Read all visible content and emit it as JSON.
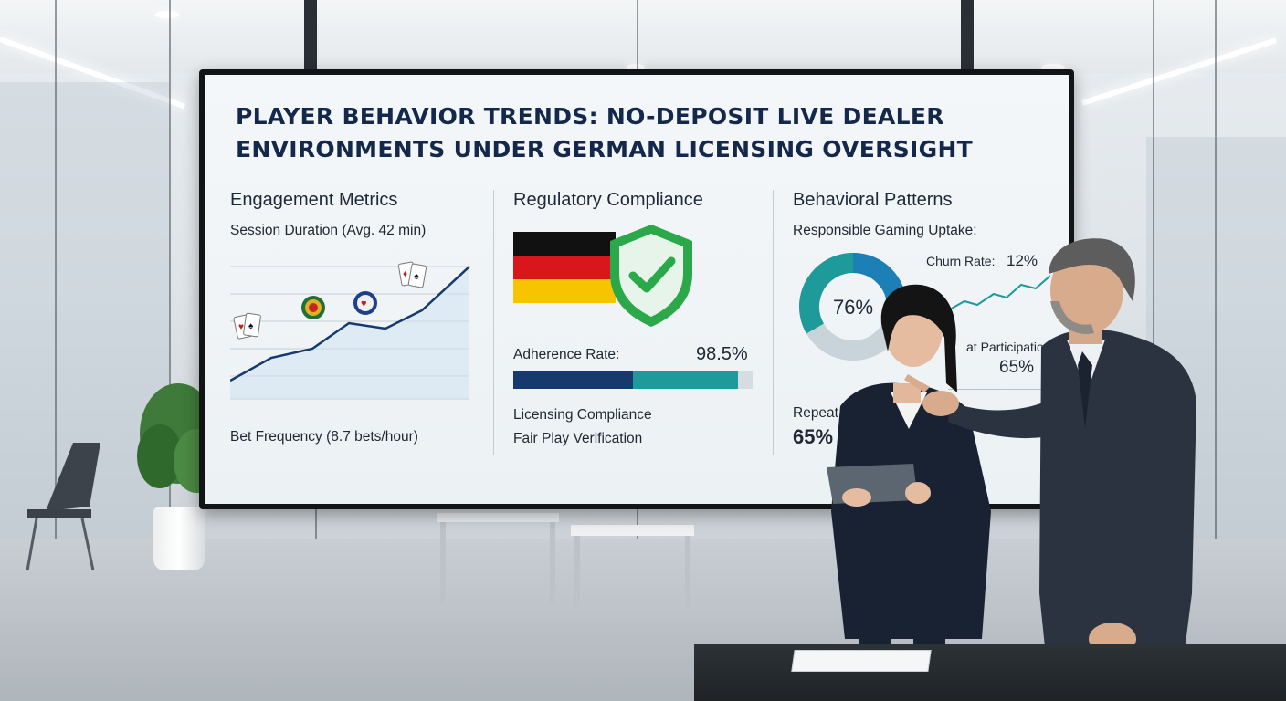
{
  "presentation": {
    "title_line1": "PLAYER BEHAVIOR TRENDS: NO-DEPOSIT LIVE DEALER",
    "title_line2": "ENVIRONMENTS UNDER GERMAN LICENSING OVERSIGHT"
  },
  "engagement": {
    "heading": "Engagement Metrics",
    "session_duration": "Session Duration (Avg. 42 min)",
    "bet_frequency": "Bet Frequency (8.7 bets/hour)"
  },
  "compliance": {
    "heading": "Regulatory Compliance",
    "adherence_label": "Adherence Rate:",
    "adherence_value": "98.5%",
    "adherence_fraction": 0.985,
    "licensing": "Licensing Compliance",
    "fair_play": "Fair Play Verification",
    "flag_colors": [
      "#111111",
      "#d8161b",
      "#f6c400"
    ]
  },
  "behavior": {
    "heading": "Behavioral Patterns",
    "responsible_gaming": "Responsible Gaming Uptake:",
    "donut_value": "76%",
    "donut_fraction": 0.76,
    "churn_label": "Churn Rate:",
    "churn_value": "12%",
    "repeat_participation_partial": "at Participation",
    "repeat_value_1": "65%",
    "repeat_partial": "Repeat P",
    "repeat_value_2": "65%"
  },
  "colors": {
    "navy": "#13284a",
    "teal": "#1e9a9a",
    "blue": "#1c7fb5",
    "green": "#2db84a"
  },
  "icons": [
    "playing-cards-icon",
    "poker-chip-icon",
    "shield-check-icon",
    "german-flag-icon"
  ]
}
